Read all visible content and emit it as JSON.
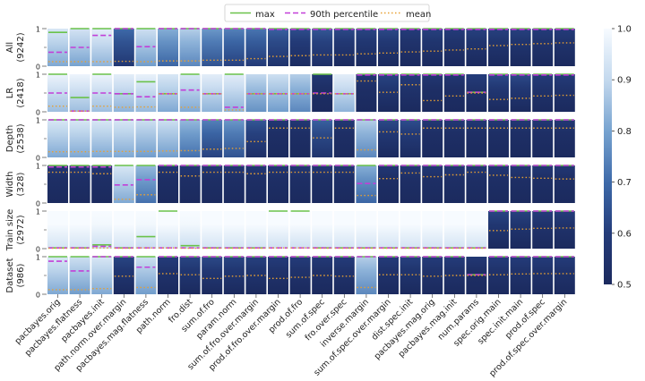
{
  "chart_data": {
    "type": "heatmap",
    "legend": {
      "placement": "top-center",
      "entries": [
        {
          "label": "max",
          "color": "#6ac24a",
          "style": "solid"
        },
        {
          "label": "90th percentile",
          "color": "#c23fd8",
          "style": "dashed"
        },
        {
          "label": "mean",
          "color": "#e8a033",
          "style": "dotted"
        }
      ]
    },
    "colorbar": {
      "range": [
        0.5,
        1.0
      ],
      "ticks": [
        "1.0",
        "0.9",
        "0.8",
        "0.7",
        "0.6",
        "0.5"
      ],
      "low_color": "#1b2a5e",
      "high_color": "#f7fbff"
    },
    "y_ticks": [
      "0",
      "1"
    ],
    "columns": [
      "pacbayes.orig",
      "pacbayes.flatness",
      "pacbayes.init",
      "path.norm.over.margin",
      "pacbayes.mag.flatness",
      "path.norm",
      "fro.dist",
      "sum.of.fro",
      "param.norm",
      "sum.of.fro.over.margin",
      "prod.of.fro.over.margin",
      "prod.of.fro",
      "sum.of.spec",
      "fro.over.spec",
      "inverse.margin",
      "sum.of.spec.over.margin",
      "dist.spec.init",
      "pacbayes.mag.orig",
      "pacbayes.mag.init",
      "num.params",
      "spec.orig.main",
      "spec.init.main",
      "prod.of.spec",
      "prod.of.spec.over.margin"
    ],
    "rows": [
      {
        "label": "All",
        "count": "(9242)",
        "cells": [
          [
            0.9,
            0.37,
            0.12
          ],
          [
            1,
            0.5,
            0.12
          ],
          [
            1,
            0.82,
            0.12
          ],
          [
            1,
            1,
            0.13
          ],
          [
            1,
            0.52,
            0.12
          ],
          [
            1,
            1,
            0.14
          ],
          [
            1,
            1,
            0.14
          ],
          [
            1,
            1,
            0.16
          ],
          [
            1,
            1,
            0.16
          ],
          [
            1,
            1,
            0.2
          ],
          [
            1,
            0.98,
            0.26
          ],
          [
            1,
            0.98,
            0.28
          ],
          [
            1,
            0.98,
            0.3
          ],
          [
            1,
            0.98,
            0.3
          ],
          [
            1,
            0.98,
            0.33
          ],
          [
            1,
            0.98,
            0.35
          ],
          [
            1,
            0.98,
            0.38
          ],
          [
            1,
            0.98,
            0.4
          ],
          [
            1,
            0.98,
            0.43
          ],
          [
            1,
            0.98,
            0.46
          ],
          [
            1,
            0.98,
            0.55
          ],
          [
            1,
            0.98,
            0.58
          ],
          [
            1,
            0.98,
            0.6
          ],
          [
            1,
            0.98,
            0.62
          ]
        ]
      },
      {
        "label": "LR",
        "count": "(2418)",
        "cells": [
          [
            1,
            0.5,
            0.15
          ],
          [
            0.38,
            0.02,
            0.02
          ],
          [
            1,
            0.5,
            0.15
          ],
          [
            0.48,
            0.48,
            0.12
          ],
          [
            0.8,
            0.4,
            0.13
          ],
          [
            0.48,
            0.48,
            0.48
          ],
          [
            1,
            0.58,
            0.12
          ],
          [
            0.48,
            0.48,
            0.48
          ],
          [
            1,
            0.12,
            0.05
          ],
          [
            0.48,
            0.48,
            0.48
          ],
          [
            0.48,
            0.48,
            0.48
          ],
          [
            0.48,
            0.48,
            0.48
          ],
          [
            1,
            0.5,
            0.48
          ],
          [
            0.48,
            0.48,
            0.48
          ],
          [
            1,
            0.98,
            0.82
          ],
          [
            1,
            0.98,
            0.52
          ],
          [
            1,
            0.98,
            0.72
          ],
          [
            1,
            0.98,
            0.3
          ],
          [
            1,
            0.98,
            0.42
          ],
          [
            0.52,
            0.52,
            0.5
          ],
          [
            1,
            0.98,
            0.33
          ],
          [
            1,
            0.98,
            0.36
          ],
          [
            1,
            0.98,
            0.42
          ],
          [
            1,
            0.98,
            0.44
          ]
        ]
      },
      {
        "label": "Depth",
        "count": "(2538)",
        "cells": [
          [
            1,
            1,
            0.15
          ],
          [
            1,
            1,
            0.15
          ],
          [
            1,
            1,
            0.16
          ],
          [
            1,
            1,
            0.16
          ],
          [
            1,
            1,
            0.16
          ],
          [
            1,
            1,
            0.17
          ],
          [
            1,
            1,
            0.18
          ],
          [
            1,
            1,
            0.22
          ],
          [
            1,
            1,
            0.24
          ],
          [
            1,
            1,
            0.42
          ],
          [
            1,
            1,
            0.78
          ],
          [
            1,
            1,
            0.78
          ],
          [
            1,
            1,
            0.52
          ],
          [
            1,
            1,
            0.78
          ],
          [
            1,
            1,
            0.2
          ],
          [
            1,
            1,
            0.68
          ],
          [
            1,
            1,
            0.62
          ],
          [
            1,
            1,
            0.78
          ],
          [
            1,
            1,
            0.78
          ],
          [
            1,
            1,
            0.78
          ],
          [
            1,
            1,
            0.78
          ],
          [
            1,
            1,
            0.78
          ],
          [
            1,
            1,
            0.78
          ],
          [
            1,
            1,
            0.78
          ]
        ]
      },
      {
        "label": "Width",
        "count": "(328)",
        "cells": [
          [
            1,
            0.96,
            0.82
          ],
          [
            1,
            0.96,
            0.82
          ],
          [
            1,
            0.96,
            0.78
          ],
          [
            1,
            0.48,
            0.1
          ],
          [
            1,
            0.62,
            0.22
          ],
          [
            1,
            1,
            0.82
          ],
          [
            1,
            1,
            0.72
          ],
          [
            1,
            1,
            0.82
          ],
          [
            1,
            1,
            0.82
          ],
          [
            1,
            1,
            0.78
          ],
          [
            1,
            1,
            0.82
          ],
          [
            1,
            1,
            0.82
          ],
          [
            1,
            1,
            0.82
          ],
          [
            1,
            1,
            0.82
          ],
          [
            1,
            0.52,
            0.2
          ],
          [
            1,
            1,
            0.65
          ],
          [
            1,
            1,
            0.8
          ],
          [
            1,
            1,
            0.7
          ],
          [
            1,
            1,
            0.75
          ],
          [
            1,
            1,
            0.82
          ],
          [
            1,
            1,
            0.74
          ],
          [
            1,
            1,
            0.68
          ],
          [
            1,
            1,
            0.66
          ],
          [
            1,
            1,
            0.64
          ]
        ]
      },
      {
        "label": "Train size",
        "count": "(2972)",
        "cells": [
          [
            0.02,
            0.02,
            0.01
          ],
          [
            0.02,
            0.02,
            0.01
          ],
          [
            0.1,
            0.06,
            0.02
          ],
          [
            0.02,
            0.02,
            0.01
          ],
          [
            0.32,
            0.02,
            0.02
          ],
          [
            1,
            0.02,
            0.02
          ],
          [
            0.08,
            0.02,
            0.01
          ],
          [
            0.02,
            0.02,
            0.01
          ],
          [
            0.02,
            0.02,
            0.01
          ],
          [
            0.02,
            0.02,
            0.01
          ],
          [
            1,
            0.02,
            0.02
          ],
          [
            1,
            0.02,
            0.02
          ],
          [
            0.02,
            0.02,
            0.01
          ],
          [
            0.02,
            0.02,
            0.01
          ],
          [
            0.02,
            0.02,
            0.01
          ],
          [
            0.02,
            0.02,
            0.01
          ],
          [
            0.02,
            0.02,
            0.01
          ],
          [
            0.02,
            0.02,
            0.01
          ],
          [
            0.02,
            0.02,
            0.01
          ],
          [
            0.02,
            0.02,
            0.01
          ],
          [
            1,
            1,
            0.48
          ],
          [
            1,
            1,
            0.52
          ],
          [
            1,
            1,
            0.54
          ],
          [
            1,
            1,
            0.55
          ]
        ]
      },
      {
        "label": "Dataset",
        "count": "(986)",
        "cells": [
          [
            1,
            0.88,
            0.12
          ],
          [
            1,
            0.62,
            0.12
          ],
          [
            1,
            1,
            0.15
          ],
          [
            1,
            1,
            0.48
          ],
          [
            1,
            0.72,
            0.18
          ],
          [
            1,
            1,
            0.55
          ],
          [
            1,
            1,
            0.52
          ],
          [
            1,
            1,
            0.42
          ],
          [
            1,
            1,
            0.48
          ],
          [
            1,
            1,
            0.5
          ],
          [
            1,
            1,
            0.42
          ],
          [
            1,
            1,
            0.45
          ],
          [
            1,
            1,
            0.5
          ],
          [
            1,
            1,
            0.48
          ],
          [
            1,
            1,
            0.18
          ],
          [
            1,
            1,
            0.52
          ],
          [
            1,
            1,
            0.52
          ],
          [
            1,
            1,
            0.48
          ],
          [
            1,
            1,
            0.5
          ],
          [
            0.52,
            0.52,
            0.5
          ],
          [
            1,
            1,
            0.52
          ],
          [
            1,
            1,
            0.54
          ],
          [
            1,
            1,
            0.55
          ],
          [
            1,
            1,
            0.55
          ]
        ]
      }
    ],
    "bars": [
      [
        0.86,
        0.85,
        0.88,
        0.62,
        0.84,
        0.74,
        0.8,
        0.7,
        0.66,
        0.64,
        0.6,
        0.56,
        0.58,
        0.55,
        0.54,
        0.55,
        0.52,
        0.53,
        0.52,
        0.53,
        0.53,
        0.53,
        0.52,
        0.52
      ],
      [
        0.9,
        0.9,
        0.9,
        0.88,
        0.89,
        0.86,
        0.86,
        0.88,
        0.88,
        0.82,
        0.84,
        0.8,
        0.5,
        0.88,
        0.5,
        0.54,
        0.52,
        0.5,
        0.5,
        0.52,
        0.55,
        0.55,
        0.52,
        0.52
      ],
      [
        0.86,
        0.86,
        0.86,
        0.86,
        0.84,
        0.84,
        0.76,
        0.66,
        0.7,
        0.58,
        0.5,
        0.5,
        0.6,
        0.5,
        0.8,
        0.55,
        0.56,
        0.5,
        0.5,
        0.5,
        0.5,
        0.5,
        0.5,
        0.5
      ],
      [
        0.5,
        0.5,
        0.5,
        0.86,
        0.76,
        0.5,
        0.5,
        0.5,
        0.5,
        0.5,
        0.5,
        0.5,
        0.5,
        0.5,
        0.74,
        0.5,
        0.5,
        0.5,
        0.5,
        0.5,
        0.5,
        0.5,
        0.5,
        0.5
      ],
      [
        0.98,
        0.98,
        0.96,
        0.98,
        0.96,
        0.97,
        0.96,
        0.98,
        0.98,
        0.98,
        0.97,
        0.97,
        0.98,
        0.98,
        0.98,
        0.98,
        0.98,
        0.98,
        0.98,
        0.98,
        0.54,
        0.53,
        0.52,
        0.52
      ],
      [
        0.86,
        0.84,
        0.86,
        0.54,
        0.84,
        0.52,
        0.54,
        0.55,
        0.54,
        0.53,
        0.52,
        0.52,
        0.51,
        0.52,
        0.8,
        0.52,
        0.53,
        0.52,
        0.52,
        0.5,
        0.52,
        0.52,
        0.52,
        0.52
      ]
    ]
  }
}
